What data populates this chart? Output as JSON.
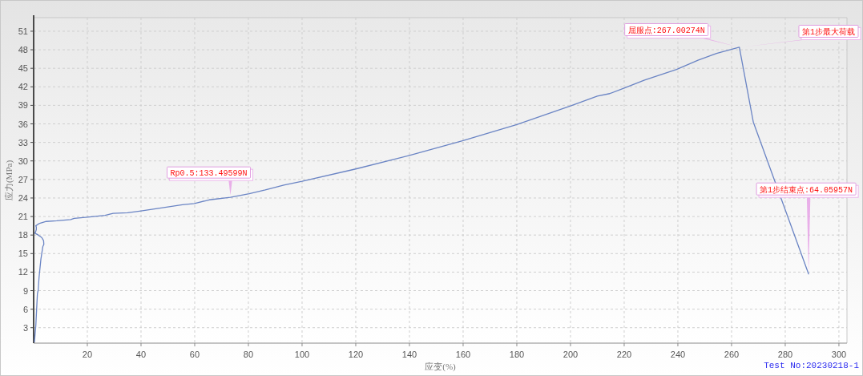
{
  "chart_data": {
    "type": "line",
    "xlabel": "应变(%)",
    "ylabel": "应力(MPa)",
    "x": [
      0.3,
      0.5,
      0.8,
      1.1,
      1.4,
      1.7,
      2.0,
      2.7,
      3.4,
      3.8,
      3.7,
      3.0,
      1.7,
      0.5,
      0.7,
      1.0,
      1.0,
      0.8,
      2.2,
      4.7,
      8.6,
      13.8,
      15.1,
      20.1,
      26.6,
      29.6,
      35.0,
      40.0,
      47.5,
      55.4,
      59.9,
      65.4,
      73.3,
      80.3,
      86.3,
      93.2,
      100,
      120,
      140,
      160,
      180,
      200,
      210,
      214.6,
      220,
      227.6,
      239.5,
      247.5,
      254.4,
      262.9,
      268.1,
      288.7
    ],
    "values": [
      0.7,
      1.8,
      3.3,
      5.9,
      8.5,
      9.1,
      11.1,
      14.1,
      16.1,
      16.5,
      17.1,
      17.6,
      18.0,
      18.3,
      18.5,
      18.9,
      19.3,
      19.5,
      19.9,
      20.2,
      20.3,
      20.5,
      20.7,
      20.9,
      21.2,
      21.5,
      21.6,
      21.9,
      22.4,
      22.9,
      23.1,
      23.7,
      24.1,
      24.7,
      25.3,
      26.1,
      26.7,
      28.7,
      30.9,
      33.3,
      35.9,
      38.9,
      40.5,
      40.9,
      41.8,
      43.1,
      44.8,
      46.3,
      47.4,
      48.4,
      36.3,
      11.7
    ],
    "color": "#6a84c4",
    "line_style": "solid",
    "xlim": [
      0,
      303
    ],
    "ylim": [
      0.5,
      53.2
    ],
    "xticks": [
      20,
      40,
      60,
      80,
      100,
      120,
      140,
      160,
      180,
      200,
      220,
      240,
      260,
      280,
      300
    ],
    "yticks": [
      3,
      6,
      9,
      12,
      15,
      18,
      21,
      24,
      27,
      30,
      33,
      36,
      39,
      42,
      45,
      48,
      51
    ],
    "grid": true,
    "annotations": [
      {
        "text": "Rp0.5:133.49599N",
        "x": 73.3,
        "y": 24.1
      },
      {
        "text": "屈服点:267.00274N",
        "x": 262.9,
        "y": 48.4
      },
      {
        "text": "第1步最大荷载",
        "x": 262.9,
        "y": 48.4
      },
      {
        "text": "第1步结束点:64.05957N",
        "x": 288.7,
        "y": 11.7
      },
      "Test No:20230218-1"
    ]
  }
}
